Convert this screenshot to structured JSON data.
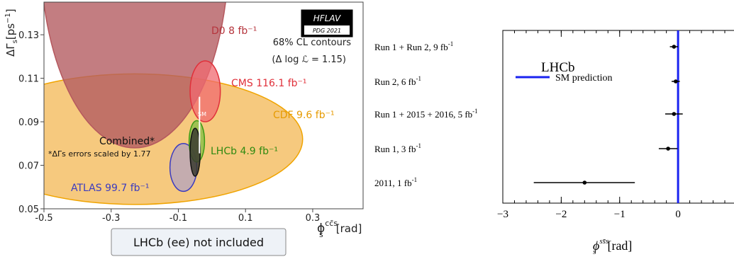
{
  "chart_data": [
    {
      "type": "scatter",
      "subtype": "contour-ellipses",
      "title": "",
      "xlabel": "ϕsccs[rad]",
      "xlabel_parts": {
        "base": "ϕ",
        "sup": "cc̄s",
        "sub": "s",
        "unit": "[rad]"
      },
      "ylabel": "ΔΓs[ps−1]",
      "ylabel_parts": {
        "base": "ΔΓ",
        "sub": "s",
        "unit_prefix": "[ps",
        "unit_sup": "−1",
        "unit_suffix": "]"
      },
      "xlim": [
        -0.5,
        0.45
      ],
      "ylim": [
        0.05,
        0.145
      ],
      "xticks": [
        -0.5,
        -0.3,
        -0.1,
        0.1,
        0.3
      ],
      "xtick_labels": [
        "-0.5",
        "-0.3",
        "-0.1",
        "0.1",
        "0.3"
      ],
      "yticks": [
        0.05,
        0.07,
        0.09,
        0.11,
        0.13
      ],
      "ytick_labels": [
        "0.05",
        "0.07",
        "0.09",
        "0.11",
        "0.13"
      ],
      "badge": {
        "top": "HFLAV",
        "bottom": "PDG 2021"
      },
      "cl_note_line1": "68% CL contours",
      "cl_note_line2": "(Δ log ℒ = 1.15)",
      "footnote": "*ΔΓs errors scaled by 1.77",
      "bottom_box": "LHCb (ee) not included",
      "sm_label": "SM",
      "sm_point": {
        "x": -0.037,
        "y": 0.0885,
        "y_err": 0.013
      },
      "series": [
        {
          "name": "D0 8 fb−1",
          "label": "D0 8 fb⁻¹",
          "color": "#b5585e",
          "fill": "#b45c62",
          "center": [
            -0.23,
            0.168
          ],
          "radius": [
            0.28,
            0.09
          ],
          "angle": 0
        },
        {
          "name": "CMS 116.1 fb−1",
          "label": "CMS 116.1 fb⁻¹",
          "color": "#e0303a",
          "fill": "#f06a70",
          "center": [
            -0.02,
            0.104
          ],
          "radius": [
            0.045,
            0.014
          ],
          "angle": 0
        },
        {
          "name": "CDF 9.6 fb−1",
          "label": "CDF 9.6 fb⁻¹",
          "color": "#f0a400",
          "fill": "#f5c067",
          "center": [
            -0.23,
            0.082
          ],
          "radius": [
            0.5,
            0.03
          ],
          "angle": 0
        },
        {
          "name": "LHCb 4.9 fb−1",
          "label": "LHCb 4.9 fb⁻¹",
          "color": "#3d9a16",
          "fill": "#8fc04a",
          "center": [
            -0.045,
            0.081
          ],
          "radius": [
            0.023,
            0.0095
          ],
          "angle": 0
        },
        {
          "name": "ATLAS 99.7 fb−1",
          "label": "ATLAS 99.7 fb⁻¹",
          "color": "#3b3bc0",
          "fill": "#a49ad0",
          "center": [
            -0.085,
            0.069
          ],
          "radius": [
            0.04,
            0.011
          ],
          "angle": 0
        },
        {
          "name": "Combined*",
          "label": "Combined*",
          "color": "#111111",
          "fill": "#3a3a30",
          "center": [
            -0.05,
            0.076
          ],
          "radius": [
            0.015,
            0.011
          ],
          "angle": 0
        }
      ]
    },
    {
      "type": "scatter",
      "subtype": "errorbar",
      "title": "LHCb",
      "xlabel": "ϕssss [rad]",
      "xlabel_parts": {
        "base": "ϕ",
        "sup": "ss̄s",
        "sub": "s",
        "unit": "[rad]"
      },
      "ylabel": "",
      "xlim": [
        -3.0,
        1.0
      ],
      "xticks": [
        -3,
        -2,
        -1,
        0
      ],
      "xtick_labels": [
        "−3",
        "−2",
        "−1",
        "0"
      ],
      "sm_line": {
        "name": "SM prediction",
        "x": 0.0,
        "color": "#1a23f0"
      },
      "measurements": [
        {
          "label": "Run 1 + Run 2, 9 fb",
          "sup": "-1",
          "value": -0.07,
          "err_lo": 0.07,
          "err_hi": 0.07
        },
        {
          "label": "Run 2, 6 fb",
          "sup": "-1",
          "value": -0.04,
          "err_lo": 0.07,
          "err_hi": 0.07
        },
        {
          "label": "Run 1 + 2015 + 2016, 5 fb",
          "sup": "-1",
          "value": -0.07,
          "err_lo": 0.15,
          "err_hi": 0.15
        },
        {
          "label": "Run 1, 3 fb",
          "sup": "-1",
          "value": -0.17,
          "err_lo": 0.16,
          "err_hi": 0.16
        },
        {
          "label": "2011, 1 fb",
          "sup": "-1",
          "value": -1.6,
          "err_lo": 0.87,
          "err_hi": 0.86
        }
      ]
    }
  ]
}
